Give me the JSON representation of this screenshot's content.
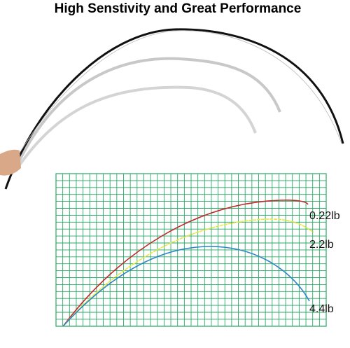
{
  "header": {
    "title": "High Senstivity and Great Performance"
  },
  "curves": [
    {
      "label": "0.22lb"
    },
    {
      "label": "2.2lb"
    },
    {
      "label": "4.4lb"
    }
  ]
}
